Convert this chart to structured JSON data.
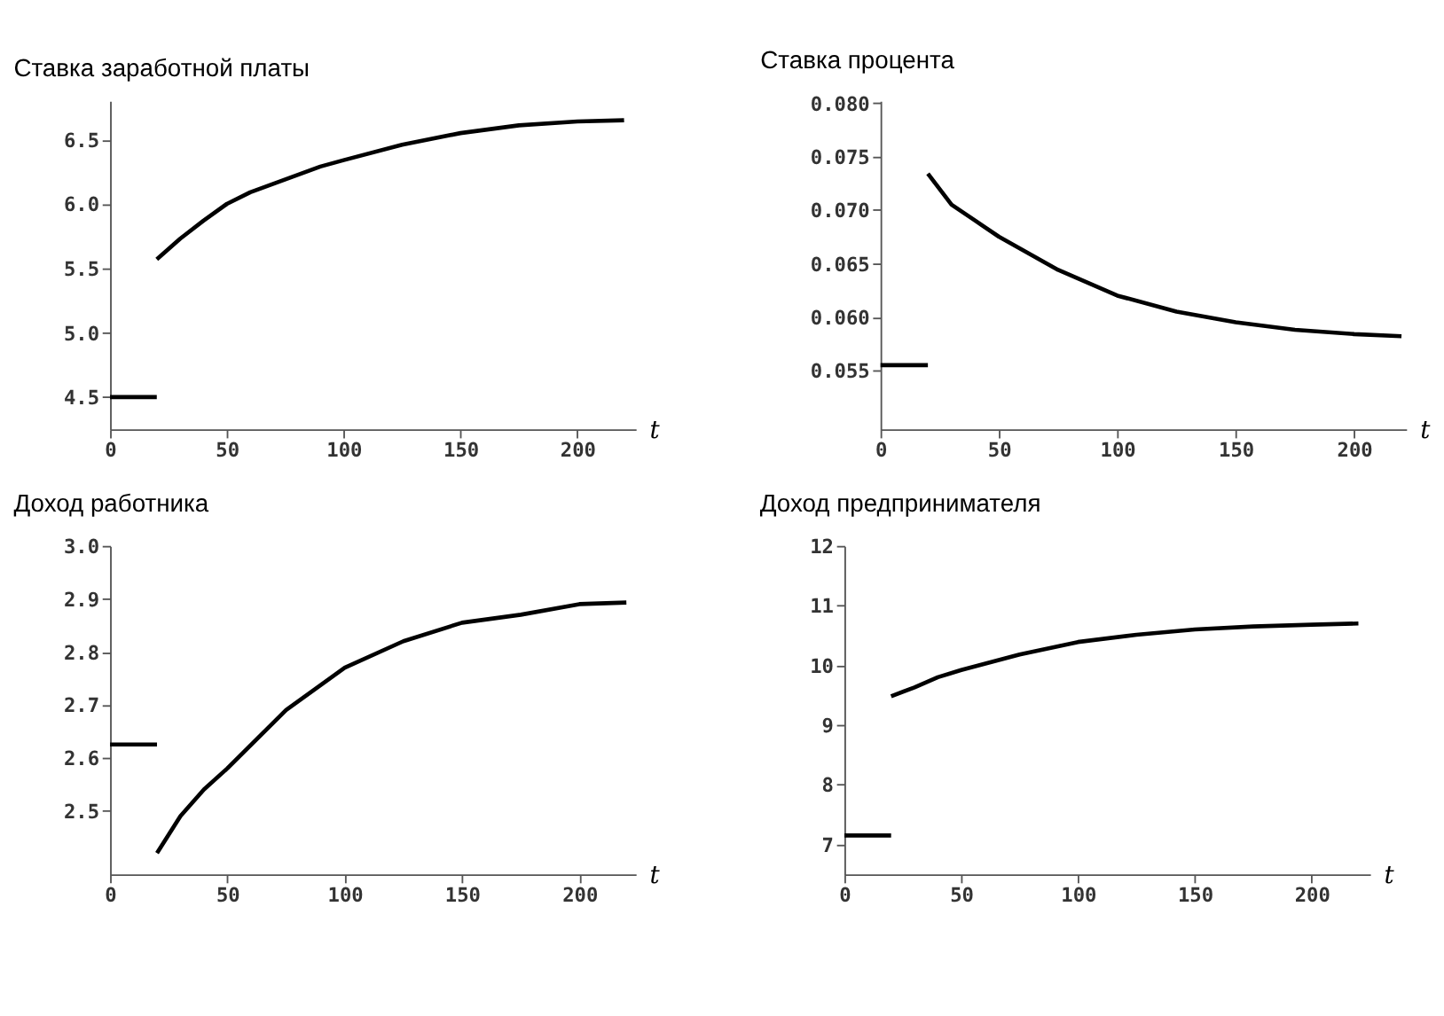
{
  "chart_data": [
    {
      "type": "line",
      "title": "Ставка заработной платы",
      "xlabel": "t",
      "xlim": [
        0,
        225
      ],
      "ylim": [
        4.25,
        6.8
      ],
      "xticks": [
        0,
        50,
        100,
        150,
        200
      ],
      "yticks": [
        4.5,
        {
          "value": 5,
          "label": "5.0"
        },
        5.5,
        {
          "value": 6,
          "label": "6.0"
        },
        6.5
      ],
      "grid": false,
      "series": [
        {
          "color": "#000000",
          "x": [
            0,
            20
          ],
          "values": [
            4.5,
            4.5
          ]
        },
        {
          "color": "#000000",
          "x": [
            20,
            30,
            40,
            50,
            60,
            75,
            90,
            100,
            125,
            150,
            175,
            200,
            220
          ],
          "values": [
            5.57,
            5.73,
            5.87,
            6.0,
            6.09,
            6.19,
            6.29,
            6.34,
            6.46,
            6.55,
            6.61,
            6.64,
            6.65
          ]
        }
      ]
    },
    {
      "type": "line",
      "title": "Ставка процента",
      "xlabel": "t",
      "xlim": [
        0,
        222
      ],
      "ylim": [
        0.0495,
        0.0802
      ],
      "xticks": [
        0,
        50,
        100,
        150,
        200
      ],
      "yticks": [
        0.055,
        {
          "value": 0.06,
          "label": "0.060"
        },
        0.065,
        {
          "value": 0.07,
          "label": "0.070"
        },
        0.075,
        {
          "value": 0.08,
          "label": "0.080"
        }
      ],
      "grid": false,
      "series": [
        {
          "color": "#000000",
          "x": [
            0,
            20
          ],
          "values": [
            0.0555,
            0.0555
          ]
        },
        {
          "color": "#000000",
          "x": [
            20,
            30,
            40,
            50,
            75,
            100,
            125,
            150,
            175,
            200,
            220
          ],
          "values": [
            0.0734,
            0.0705,
            0.069,
            0.0675,
            0.0644,
            0.062,
            0.0605,
            0.0595,
            0.0588,
            0.0584,
            0.0582
          ]
        }
      ]
    },
    {
      "type": "line",
      "title": "Доход работника",
      "xlabel": "t",
      "xlim": [
        0,
        224
      ],
      "ylim": [
        2.38,
        3.0
      ],
      "xticks": [
        0,
        50,
        100,
        150,
        200
      ],
      "yticks": [
        2.5,
        2.6,
        2.7,
        2.8,
        2.9,
        {
          "value": 3,
          "label": "3.0"
        }
      ],
      "grid": false,
      "series": [
        {
          "color": "#000000",
          "x": [
            0,
            20
          ],
          "values": [
            2.625,
            2.625
          ]
        },
        {
          "color": "#000000",
          "x": [
            20,
            30,
            40,
            50,
            75,
            100,
            125,
            150,
            175,
            200,
            220
          ],
          "values": [
            2.42,
            2.49,
            2.54,
            2.58,
            2.69,
            2.77,
            2.82,
            2.855,
            2.87,
            2.89,
            2.893
          ]
        }
      ]
    },
    {
      "type": "line",
      "title": "Доход предпринимателя",
      "xlabel": "t",
      "xlim": [
        0,
        225
      ],
      "ylim": [
        6.5,
        12
      ],
      "xticks": [
        0,
        50,
        100,
        150,
        200
      ],
      "yticks": [
        7,
        8,
        9,
        10,
        11,
        12
      ],
      "grid": false,
      "series": [
        {
          "color": "#000000",
          "x": [
            0,
            20
          ],
          "values": [
            7.15,
            7.15
          ]
        },
        {
          "color": "#000000",
          "x": [
            20,
            30,
            40,
            50,
            75,
            100,
            125,
            150,
            175,
            200,
            220
          ],
          "values": [
            9.48,
            9.63,
            9.8,
            9.92,
            10.18,
            10.39,
            10.51,
            10.6,
            10.65,
            10.68,
            10.7
          ]
        }
      ]
    }
  ]
}
